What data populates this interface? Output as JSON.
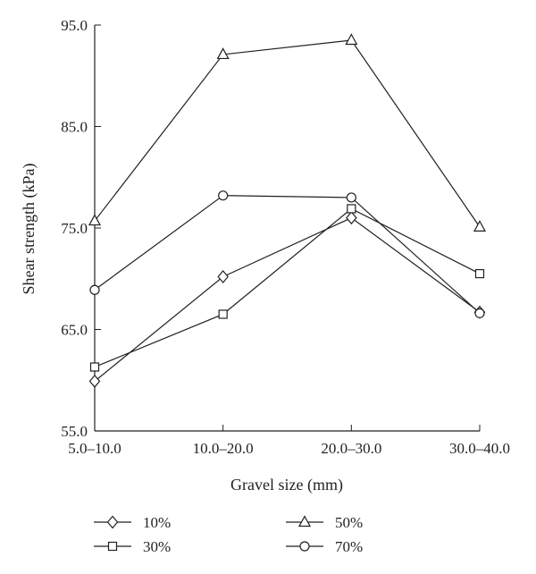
{
  "chart_data": {
    "type": "line",
    "title": "",
    "xlabel": "Gravel size (mm)",
    "ylabel": "Shear strength (kPa)",
    "categories": [
      "5.0–10.0",
      "10.0–20.0",
      "20.0–30.0",
      "30.0–40.0"
    ],
    "ylim": [
      55.0,
      95.0
    ],
    "yticks": [
      "55.0",
      "65.0",
      "75.0",
      "85.0",
      "95.0"
    ],
    "grid": false,
    "legend_position": "bottom",
    "series": [
      {
        "name": "10%",
        "marker": "diamond",
        "values": [
          59.9,
          70.2,
          76.0,
          66.7
        ]
      },
      {
        "name": "30%",
        "marker": "square",
        "values": [
          61.3,
          66.5,
          76.9,
          70.5
        ]
      },
      {
        "name": "50%",
        "marker": "triangle",
        "values": [
          75.7,
          92.1,
          93.5,
          75.1
        ]
      },
      {
        "name": "70%",
        "marker": "circle",
        "values": [
          68.9,
          78.2,
          78.0,
          66.6
        ]
      }
    ],
    "colors": {
      "line": "#231f20",
      "marker_fill": "#ffffff",
      "axis": "#231f20"
    }
  }
}
